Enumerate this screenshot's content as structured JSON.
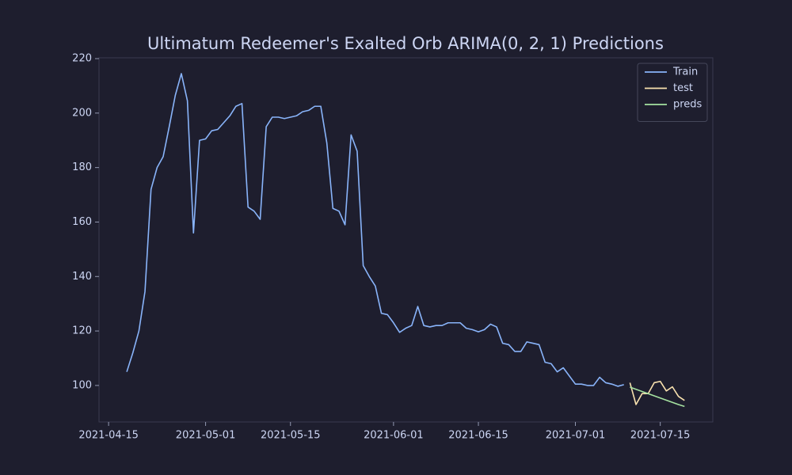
{
  "chart_data": {
    "type": "line",
    "title": "Ultimatum Redeemer's Exalted Orb ARIMA(0, 2, 1) Predictions",
    "xlim": [
      "2021-04-13T10:00",
      "2021-07-23T16:00"
    ],
    "xticks": [
      "2021-04-15",
      "2021-05-01",
      "2021-05-15",
      "2021-06-01",
      "2021-06-15",
      "2021-07-01",
      "2021-07-15"
    ],
    "ylim": [
      86.6,
      220.3
    ],
    "yticks": [
      100,
      120,
      140,
      160,
      180,
      200,
      220
    ],
    "grid": false,
    "legend": "upper right",
    "series": [
      {
        "name": "Train",
        "color": "#89b4fa",
        "x": [
          "2021-04-18",
          "2021-04-19",
          "2021-04-20",
          "2021-04-21",
          "2021-04-22",
          "2021-04-23",
          "2021-04-24",
          "2021-04-25",
          "2021-04-26",
          "2021-04-27",
          "2021-04-28",
          "2021-04-29",
          "2021-04-30",
          "2021-05-01",
          "2021-05-02",
          "2021-05-03",
          "2021-05-04",
          "2021-05-05",
          "2021-05-06",
          "2021-05-07",
          "2021-05-08",
          "2021-05-09",
          "2021-05-10",
          "2021-05-11",
          "2021-05-12",
          "2021-05-13",
          "2021-05-14",
          "2021-05-15",
          "2021-05-16",
          "2021-05-17",
          "2021-05-18",
          "2021-05-19",
          "2021-05-20",
          "2021-05-21",
          "2021-05-22",
          "2021-05-23",
          "2021-05-24",
          "2021-05-25",
          "2021-05-26",
          "2021-05-27",
          "2021-05-28",
          "2021-05-29",
          "2021-05-30",
          "2021-05-31",
          "2021-06-01",
          "2021-06-02",
          "2021-06-03",
          "2021-06-04",
          "2021-06-05",
          "2021-06-06",
          "2021-06-07",
          "2021-06-08",
          "2021-06-09",
          "2021-06-10",
          "2021-06-11",
          "2021-06-12",
          "2021-06-13",
          "2021-06-14",
          "2021-06-15",
          "2021-06-16",
          "2021-06-17",
          "2021-06-18",
          "2021-06-19",
          "2021-06-20",
          "2021-06-21",
          "2021-06-22",
          "2021-06-23",
          "2021-06-24",
          "2021-06-25",
          "2021-06-26",
          "2021-06-27",
          "2021-06-28",
          "2021-06-29",
          "2021-06-30",
          "2021-07-01",
          "2021-07-02",
          "2021-07-03",
          "2021-07-04",
          "2021-07-05",
          "2021-07-06",
          "2021-07-07",
          "2021-07-08",
          "2021-07-09"
        ],
        "values": [
          105,
          112,
          120,
          134.5,
          172,
          180,
          184,
          195,
          206.5,
          214.5,
          204.5,
          156,
          190,
          190.5,
          193.5,
          194,
          196.5,
          199,
          202.5,
          203.5,
          165.5,
          164,
          161,
          195,
          198.5,
          198.5,
          198,
          198.5,
          199,
          200.5,
          201,
          202.5,
          202.5,
          189,
          165,
          164,
          159,
          192,
          186,
          144,
          140,
          136.5,
          126.5,
          126,
          123,
          119.5,
          121,
          122,
          129,
          122,
          121.5,
          122,
          122,
          123,
          123,
          123,
          121,
          120.5,
          119.7,
          120.5,
          122.5,
          121.5,
          115.5,
          115,
          112.5,
          112.5,
          116,
          115.5,
          115,
          108.5,
          108,
          105,
          106.5,
          103.5,
          100.5,
          100.5,
          100,
          100,
          103,
          101,
          100.5,
          99.7,
          100.3
        ]
      },
      {
        "name": "test",
        "color": "#f9e2af",
        "x": [
          "2021-07-10",
          "2021-07-11",
          "2021-07-12",
          "2021-07-13",
          "2021-07-14",
          "2021-07-15",
          "2021-07-16",
          "2021-07-17",
          "2021-07-18",
          "2021-07-19"
        ],
        "values": [
          101,
          93,
          97,
          97,
          101,
          101.5,
          98,
          99.5,
          96,
          94.5
        ]
      },
      {
        "name": "preds",
        "color": "#a6e3a1",
        "x": [
          "2021-07-10",
          "2021-07-11",
          "2021-07-12",
          "2021-07-13",
          "2021-07-14",
          "2021-07-15",
          "2021-07-16",
          "2021-07-17",
          "2021-07-18",
          "2021-07-19"
        ],
        "values": [
          99.4,
          98.6,
          97.8,
          97,
          96.2,
          95.4,
          94.6,
          93.8,
          93,
          92.3
        ]
      }
    ]
  }
}
